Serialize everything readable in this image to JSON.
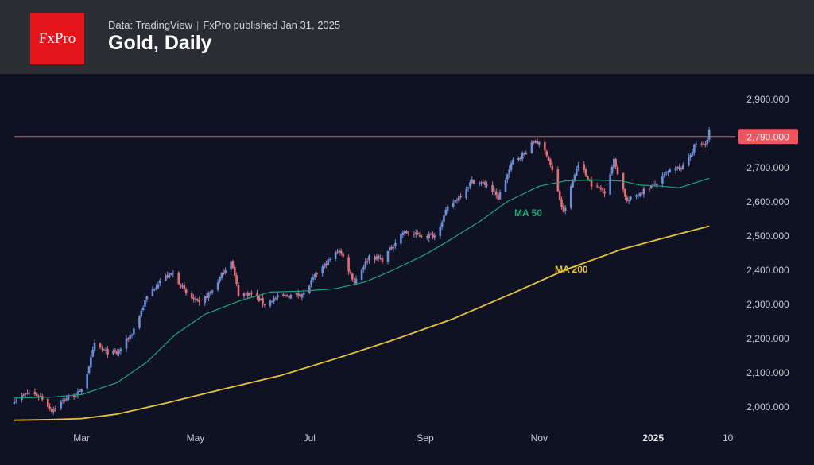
{
  "header": {
    "logo_text": "FxPro",
    "source_text": "Data: TradingView",
    "publisher_text": "FxPro published Jan 31, 2025",
    "title": "Gold, Daily"
  },
  "colors": {
    "background": "#0e1222",
    "header_bg": "#2b2d33",
    "logo_red": "#e4161c",
    "up_candle": "#6e8fd8",
    "down_candle": "#e36d74",
    "ma50": "#1fa67a",
    "ma200": "#e7c23a",
    "level_line": "#f0555f",
    "axis_text": "#c9cbd1"
  },
  "chart_data": {
    "type": "candlestick",
    "title": "Gold, Daily",
    "xlabel": "",
    "ylabel": "",
    "ylim": [
      1950,
      2950
    ],
    "xlim": [
      "2024-01-25",
      "2025-02-11"
    ],
    "yticks": [
      {
        "value": 2000,
        "label": "2,000.000"
      },
      {
        "value": 2100,
        "label": "2,100.000"
      },
      {
        "value": 2200,
        "label": "2,200.000"
      },
      {
        "value": 2300,
        "label": "2,300.000"
      },
      {
        "value": 2400,
        "label": "2,400.000"
      },
      {
        "value": 2500,
        "label": "2,500.000"
      },
      {
        "value": 2600,
        "label": "2,600.000"
      },
      {
        "value": 2700,
        "label": "2,700.000"
      },
      {
        "value": 2900,
        "label": "2,900.000"
      }
    ],
    "xticks": [
      {
        "date": "2024-03-01",
        "label": "Mar",
        "bold": false
      },
      {
        "date": "2024-05-01",
        "label": "May",
        "bold": false
      },
      {
        "date": "2024-07-01",
        "label": "Jul",
        "bold": false
      },
      {
        "date": "2024-09-01",
        "label": "Sep",
        "bold": false
      },
      {
        "date": "2024-11-01",
        "label": "Nov",
        "bold": false
      },
      {
        "date": "2025-01-01",
        "label": "2025",
        "bold": true
      },
      {
        "date": "2025-02-10",
        "label": "10",
        "bold": false
      }
    ],
    "close_anchors": [
      [
        "2024-01-25",
        2020
      ],
      [
        "2024-02-02",
        2040
      ],
      [
        "2024-02-08",
        2030
      ],
      [
        "2024-02-14",
        1990
      ],
      [
        "2024-02-22",
        2025
      ],
      [
        "2024-02-29",
        2040
      ],
      [
        "2024-03-04",
        2100
      ],
      [
        "2024-03-08",
        2180
      ],
      [
        "2024-03-14",
        2160
      ],
      [
        "2024-03-20",
        2155
      ],
      [
        "2024-03-28",
        2215
      ],
      [
        "2024-04-05",
        2320
      ],
      [
        "2024-04-12",
        2370
      ],
      [
        "2024-04-19",
        2390
      ],
      [
        "2024-04-26",
        2330
      ],
      [
        "2024-05-03",
        2300
      ],
      [
        "2024-05-10",
        2340
      ],
      [
        "2024-05-20",
        2430
      ],
      [
        "2024-05-24",
        2330
      ],
      [
        "2024-05-31",
        2330
      ],
      [
        "2024-06-07",
        2300
      ],
      [
        "2024-06-14",
        2320
      ],
      [
        "2024-06-21",
        2325
      ],
      [
        "2024-06-28",
        2330
      ],
      [
        "2024-07-05",
        2390
      ],
      [
        "2024-07-17",
        2460
      ],
      [
        "2024-07-25",
        2365
      ],
      [
        "2024-08-02",
        2440
      ],
      [
        "2024-08-09",
        2430
      ],
      [
        "2024-08-20",
        2510
      ],
      [
        "2024-08-30",
        2500
      ],
      [
        "2024-09-06",
        2500
      ],
      [
        "2024-09-13",
        2580
      ],
      [
        "2024-09-20",
        2620
      ],
      [
        "2024-09-26",
        2660
      ],
      [
        "2024-10-04",
        2650
      ],
      [
        "2024-10-10",
        2610
      ],
      [
        "2024-10-18",
        2720
      ],
      [
        "2024-10-24",
        2740
      ],
      [
        "2024-10-30",
        2780
      ],
      [
        "2024-11-05",
        2740
      ],
      [
        "2024-11-08",
        2690
      ],
      [
        "2024-11-14",
        2565
      ],
      [
        "2024-11-22",
        2715
      ],
      [
        "2024-11-29",
        2650
      ],
      [
        "2024-12-06",
        2630
      ],
      [
        "2024-12-11",
        2720
      ],
      [
        "2024-12-18",
        2600
      ],
      [
        "2024-12-26",
        2630
      ],
      [
        "2025-01-02",
        2650
      ],
      [
        "2025-01-10",
        2690
      ],
      [
        "2025-01-17",
        2700
      ],
      [
        "2025-01-24",
        2770
      ],
      [
        "2025-01-29",
        2765
      ],
      [
        "2025-01-31",
        2810
      ]
    ],
    "series": [
      {
        "name": "MA 50",
        "type": "line",
        "points": [
          [
            "2024-01-25",
            2025
          ],
          [
            "2024-02-15",
            2028
          ],
          [
            "2024-03-01",
            2035
          ],
          [
            "2024-03-20",
            2070
          ],
          [
            "2024-04-05",
            2130
          ],
          [
            "2024-04-20",
            2210
          ],
          [
            "2024-05-06",
            2270
          ],
          [
            "2024-05-25",
            2310
          ],
          [
            "2024-06-10",
            2335
          ],
          [
            "2024-06-28",
            2338
          ],
          [
            "2024-07-15",
            2345
          ],
          [
            "2024-07-31",
            2365
          ],
          [
            "2024-08-15",
            2400
          ],
          [
            "2024-09-01",
            2445
          ],
          [
            "2024-09-15",
            2490
          ],
          [
            "2024-10-01",
            2545
          ],
          [
            "2024-10-15",
            2600
          ],
          [
            "2024-11-01",
            2645
          ],
          [
            "2024-11-15",
            2660
          ],
          [
            "2024-11-30",
            2663
          ],
          [
            "2024-12-15",
            2660
          ],
          [
            "2024-12-25",
            2648
          ],
          [
            "2025-01-05",
            2645
          ],
          [
            "2025-01-15",
            2640
          ],
          [
            "2025-01-31",
            2668
          ]
        ]
      },
      {
        "name": "MA 200",
        "type": "line",
        "points": [
          [
            "2024-01-25",
            1960
          ],
          [
            "2024-02-15",
            1962
          ],
          [
            "2024-03-01",
            1965
          ],
          [
            "2024-03-20",
            1978
          ],
          [
            "2024-04-15",
            2010
          ],
          [
            "2024-05-15",
            2050
          ],
          [
            "2024-06-15",
            2090
          ],
          [
            "2024-07-15",
            2140
          ],
          [
            "2024-08-15",
            2195
          ],
          [
            "2024-09-15",
            2255
          ],
          [
            "2024-10-15",
            2325
          ],
          [
            "2024-11-15",
            2400
          ],
          [
            "2024-12-15",
            2460
          ],
          [
            "2025-01-15",
            2505
          ],
          [
            "2025-01-31",
            2528
          ]
        ]
      }
    ],
    "labels": {
      "ma50": "MA 50",
      "ma200": "MA 200"
    },
    "level": {
      "value": 2790,
      "label": "2,790.000"
    }
  }
}
